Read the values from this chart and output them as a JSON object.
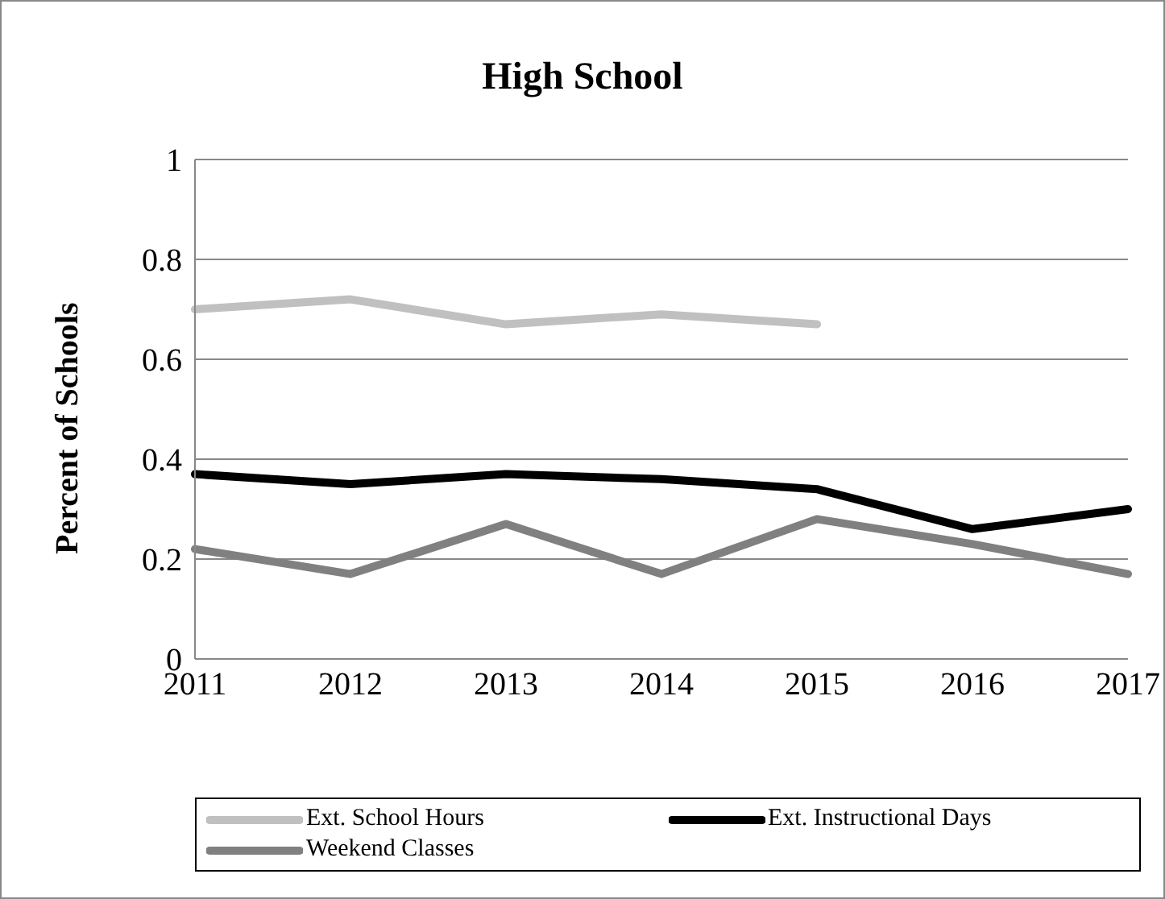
{
  "chart_data": {
    "type": "line",
    "title": "High School",
    "ylabel": "Percent of Schools",
    "categories": [
      "2011",
      "2012",
      "2013",
      "2014",
      "2015",
      "2016",
      "2017"
    ],
    "series": [
      {
        "name": "Ext. School Hours",
        "color": "#c0c0c0",
        "values": [
          0.7,
          0.72,
          0.67,
          0.69,
          0.67,
          null,
          null
        ]
      },
      {
        "name": "Ext. Instructional Days",
        "color": "#000000",
        "values": [
          0.37,
          0.35,
          0.37,
          0.36,
          0.34,
          0.26,
          0.3
        ]
      },
      {
        "name": "Weekend Classes",
        "color": "#808080",
        "values": [
          0.22,
          0.17,
          0.27,
          0.17,
          0.28,
          0.23,
          0.17
        ]
      }
    ],
    "ylim": [
      0,
      1
    ],
    "yticks": [
      0,
      0.2,
      0.4,
      0.6,
      0.8,
      1
    ],
    "grid": "y",
    "legend": "bottom",
    "marker": "none",
    "line_style": "solid"
  }
}
